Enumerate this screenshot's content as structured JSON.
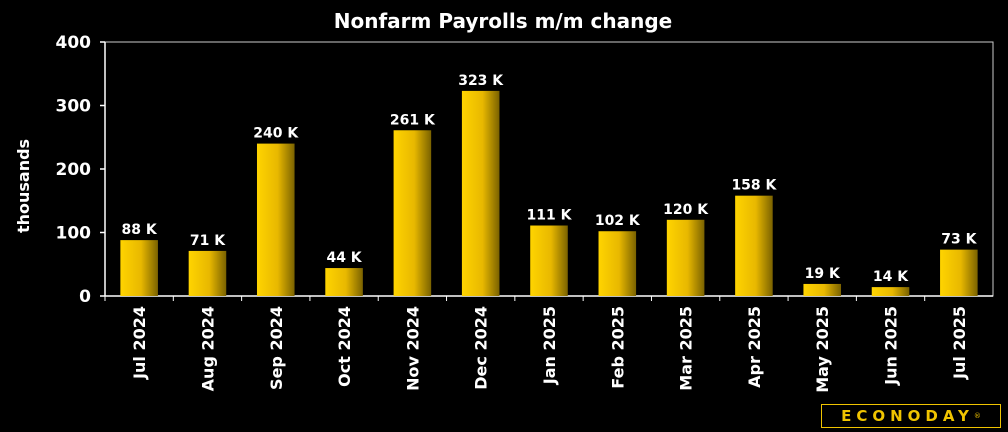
{
  "chart_data": {
    "type": "bar",
    "title": "Nonfarm Payrolls m/m change",
    "xlabel": "",
    "ylabel": "thousands",
    "ylim": [
      0,
      400
    ],
    "yticks": [
      "0",
      "100",
      "200",
      "300",
      "400"
    ],
    "categories": [
      "Jul 2024",
      "Aug 2024",
      "Sep 2024",
      "Oct 2024",
      "Nov 2024",
      "Dec 2024",
      "Jan 2025",
      "Feb 2025",
      "Mar 2025",
      "Apr 2025",
      "May 2025",
      "Jun 2025",
      "Jul 2025"
    ],
    "values": [
      88,
      71,
      240,
      44,
      261,
      323,
      111,
      102,
      120,
      158,
      19,
      14,
      73
    ],
    "data_labels": [
      "88 K",
      "71 K",
      "240 K",
      "44 K",
      "261 K",
      "323 K",
      "111 K",
      "102 K",
      "120 K",
      "158 K",
      "19 K",
      "14 K",
      "73 K"
    ],
    "grid": false,
    "legend": "none",
    "colors": {
      "background": "#000000",
      "bar_light": "#ffd400",
      "bar_dark": "#7a6200",
      "text": "#ffffff",
      "axis": "#ffffff"
    }
  },
  "brand": {
    "logo_text": "ECONODAY",
    "registered_mark": "®",
    "color": "#f0c400"
  }
}
